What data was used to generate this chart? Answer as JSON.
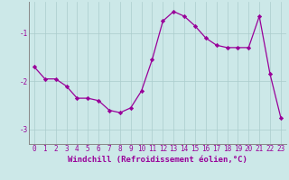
{
  "x": [
    0,
    1,
    2,
    3,
    4,
    5,
    6,
    7,
    8,
    9,
    10,
    11,
    12,
    13,
    14,
    15,
    16,
    17,
    18,
    19,
    20,
    21,
    22,
    23
  ],
  "y": [
    -1.7,
    -1.95,
    -1.95,
    -2.1,
    -2.35,
    -2.35,
    -2.4,
    -2.6,
    -2.65,
    -2.55,
    -2.2,
    -1.55,
    -0.75,
    -0.55,
    -0.65,
    -0.85,
    -1.1,
    -1.25,
    -1.3,
    -1.3,
    -1.3,
    -0.65,
    -1.85,
    -2.75
  ],
  "line_color": "#990099",
  "marker": "D",
  "marker_size": 2.2,
  "bg_color": "#cce8e8",
  "grid_color": "#aacccc",
  "xlabel": "Windchill (Refroidissement éolien,°C)",
  "xlabel_fontsize": 6.5,
  "tick_fontsize": 5.5,
  "yticks": [
    -3,
    -2,
    -1
  ],
  "xlim": [
    -0.5,
    23.5
  ],
  "ylim": [
    -3.3,
    -0.35
  ],
  "line_width": 0.9,
  "spine_color": "#888888"
}
